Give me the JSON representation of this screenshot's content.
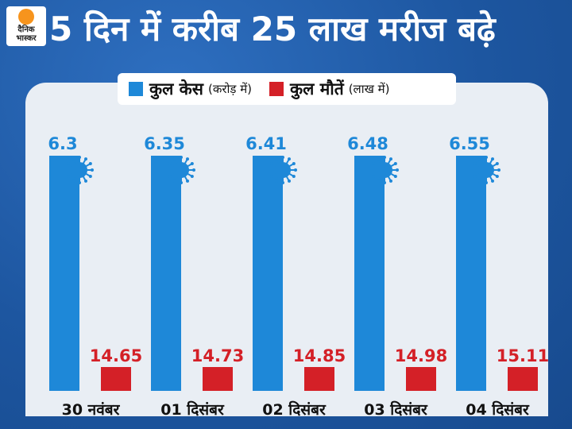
{
  "header": {
    "title": "5 दिन में करीब 25 लाख मरीज बढ़े",
    "logo_line1": "दैनिक",
    "logo_line2": "भास्कर"
  },
  "colors": {
    "background": "#1f5aa6",
    "cases": "#1e88d8",
    "deaths": "#d42027",
    "panel": "#e9eef4",
    "logo_accent": "#f7941d"
  },
  "chart_data": {
    "type": "bar",
    "title": "5 दिन में करीब 25 लाख मरीज बढ़े",
    "categories": [
      "30 नवंबर",
      "01 दिसंबर",
      "02 दिसंबर",
      "03 दिसंबर",
      "04 दिसंबर"
    ],
    "series": [
      {
        "name": "कुल केस",
        "unit": "(करोड़ में)",
        "values": [
          6.3,
          6.35,
          6.41,
          6.48,
          6.55
        ]
      },
      {
        "name": "कुल मौतें",
        "unit": "(लाख में)",
        "values": [
          14.65,
          14.73,
          14.85,
          14.98,
          15.11
        ]
      }
    ],
    "legend_position": "top",
    "grid": false,
    "xlabel": "",
    "ylabel": ""
  }
}
